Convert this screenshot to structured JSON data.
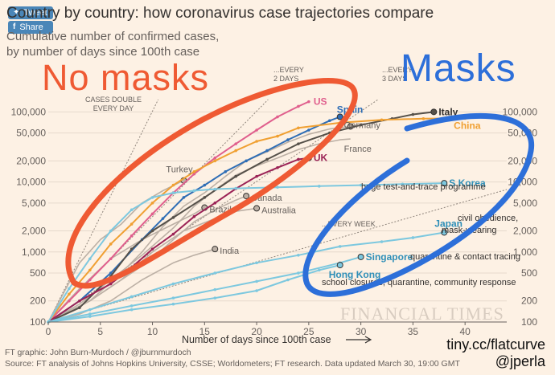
{
  "header": {
    "tweet_label": "Tweet",
    "share_label": "Share",
    "title": "Country by country: how coronavirus case trajectories compare",
    "subtitle_line1": "Cumulative number of confirmed cases,",
    "subtitle_line2": "by number of days since 100th case"
  },
  "annotations": {
    "no_masks": "No masks",
    "masks": "Masks",
    "link": "tiny.cc/flatcurve",
    "handle": "@jperla",
    "watermark": "FINANCIAL TIMES"
  },
  "footer": {
    "line1": "FT graphic: John Burn-Murdoch / @jburnmurdoch",
    "line2": "Source: FT analysis of Johns Hopkins University, CSSE; Worldometers; FT research. Data updated March 30, 19:00 GMT"
  },
  "colors": {
    "background": "#fdf1e4",
    "no_masks": "#ef5a33",
    "masks": "#2d6fd9",
    "grey": "#c9bdb2"
  },
  "chart_data": {
    "type": "line",
    "xlabel": "Number of days since 100th case",
    "xlim": [
      0,
      44
    ],
    "xticks": [
      0,
      5,
      10,
      15,
      20,
      25,
      30,
      35,
      40
    ],
    "yscale": "log",
    "ylim": [
      100,
      150000
    ],
    "yticks": [
      100,
      200,
      500,
      1000,
      2000,
      5000,
      10000,
      20000,
      50000,
      100000
    ],
    "ytick_labels": [
      "100",
      "200",
      "500",
      "1,000",
      "2,000",
      "5,000",
      "10,000",
      "20,000",
      "50,000",
      "100,000"
    ],
    "grid": true,
    "guides": [
      {
        "label": "CASES DOUBLE EVERY DAY",
        "lines": [
          "CASES DOUBLE",
          "EVERY DAY"
        ],
        "doubling_days": 1
      },
      {
        "label": "...EVERY 2 DAYS",
        "lines": [
          "...EVERY",
          "2 DAYS"
        ],
        "doubling_days": 2
      },
      {
        "label": "...EVERY 3 DAYS",
        "lines": [
          "...EVERY",
          "3 DAYS"
        ],
        "doubling_days": 3
      },
      {
        "label": "...EVERY WEEK",
        "lines": [
          "...EVERY WEEK"
        ],
        "doubling_days": 7
      }
    ],
    "series": [
      {
        "name": "US",
        "color": "#e05f8d",
        "label_color": "#e05f8d",
        "bold": true,
        "points": [
          [
            0,
            100
          ],
          [
            2,
            200
          ],
          [
            4,
            400
          ],
          [
            6,
            800
          ],
          [
            8,
            1700
          ],
          [
            10,
            3500
          ],
          [
            12,
            7000
          ],
          [
            14,
            13000
          ],
          [
            16,
            22000
          ],
          [
            18,
            35000
          ],
          [
            20,
            55000
          ],
          [
            22,
            85000
          ],
          [
            24,
            120000
          ],
          [
            25,
            140000
          ]
        ]
      },
      {
        "name": "Spain",
        "color": "#2e6db5",
        "label_color": "#2e6db5",
        "bold": true,
        "points": [
          [
            0,
            100
          ],
          [
            3,
            200
          ],
          [
            6,
            500
          ],
          [
            9,
            1500
          ],
          [
            11,
            3000
          ],
          [
            13,
            6000
          ],
          [
            15,
            9000
          ],
          [
            17,
            14000
          ],
          [
            19,
            20000
          ],
          [
            21,
            28000
          ],
          [
            23,
            40000
          ],
          [
            25,
            55000
          ],
          [
            27,
            75000
          ],
          [
            28,
            85000
          ]
        ]
      },
      {
        "name": "Italy",
        "color": "#555049",
        "label_color": "#33302e",
        "bold": true,
        "points": [
          [
            0,
            100
          ],
          [
            3,
            160
          ],
          [
            6,
            450
          ],
          [
            8,
            1100
          ],
          [
            10,
            2000
          ],
          [
            12,
            3100
          ],
          [
            15,
            6000
          ],
          [
            18,
            12000
          ],
          [
            21,
            21000
          ],
          [
            24,
            35000
          ],
          [
            27,
            50000
          ],
          [
            30,
            65000
          ],
          [
            33,
            80000
          ],
          [
            35,
            92000
          ],
          [
            37,
            100000
          ]
        ]
      },
      {
        "name": "China",
        "color": "#f0a032",
        "label_color": "#f0a032",
        "bold": true,
        "points": [
          [
            0,
            100
          ],
          [
            2,
            250
          ],
          [
            4,
            550
          ],
          [
            6,
            1300
          ],
          [
            8,
            2500
          ],
          [
            10,
            5000
          ],
          [
            12,
            9000
          ],
          [
            14,
            14000
          ],
          [
            16,
            20000
          ],
          [
            18,
            28000
          ],
          [
            20,
            38000
          ],
          [
            22,
            45000
          ],
          [
            24,
            59000
          ],
          [
            28,
            70000
          ],
          [
            32,
            77000
          ],
          [
            36,
            80000
          ],
          [
            40,
            81000
          ]
        ]
      },
      {
        "name": "Germany",
        "color": "#bcb0a5",
        "label_color": "#66605c",
        "bold": false,
        "points": [
          [
            0,
            100
          ],
          [
            4,
            200
          ],
          [
            7,
            500
          ],
          [
            9,
            1000
          ],
          [
            11,
            2300
          ],
          [
            13,
            4500
          ],
          [
            15,
            7000
          ],
          [
            17,
            12000
          ],
          [
            19,
            20000
          ],
          [
            21,
            27000
          ],
          [
            23,
            37000
          ],
          [
            25,
            48000
          ],
          [
            27,
            57000
          ],
          [
            29,
            62000
          ]
        ]
      },
      {
        "name": "France",
        "color": "#bcb0a5",
        "label_color": "#66605c",
        "bold": false,
        "points": [
          [
            0,
            100
          ],
          [
            3,
            180
          ],
          [
            6,
            400
          ],
          [
            9,
            900
          ],
          [
            12,
            2200
          ],
          [
            14,
            4500
          ],
          [
            16,
            7700
          ],
          [
            18,
            12500
          ],
          [
            20,
            17000
          ],
          [
            22,
            22000
          ],
          [
            24,
            29000
          ],
          [
            26,
            35000
          ],
          [
            28,
            40000
          ],
          [
            29,
            41000
          ]
        ]
      },
      {
        "name": "UK",
        "color": "#9b2356",
        "label_color": "#9b2356",
        "bold": true,
        "points": [
          [
            0,
            100
          ],
          [
            3,
            200
          ],
          [
            6,
            350
          ],
          [
            8,
            600
          ],
          [
            10,
            1100
          ],
          [
            12,
            1800
          ],
          [
            14,
            3200
          ],
          [
            16,
            5000
          ],
          [
            18,
            8000
          ],
          [
            20,
            12000
          ],
          [
            22,
            16000
          ],
          [
            24,
            21000
          ],
          [
            25,
            22000
          ]
        ]
      },
      {
        "name": "Turkey",
        "color": "#bcb0a5",
        "label_color": "#66605c",
        "bold": false,
        "points": [
          [
            0,
            100
          ],
          [
            3,
            700
          ],
          [
            5,
            1500
          ],
          [
            7,
            2500
          ],
          [
            9,
            5000
          ],
          [
            11,
            7500
          ],
          [
            13,
            10500
          ]
        ]
      },
      {
        "name": "Canada",
        "color": "#bcb0a5",
        "label_color": "#66605c",
        "bold": false,
        "points": [
          [
            0,
            100
          ],
          [
            4,
            200
          ],
          [
            8,
            500
          ],
          [
            10,
            800
          ],
          [
            12,
            1500
          ],
          [
            14,
            2700
          ],
          [
            16,
            4000
          ],
          [
            18,
            5500
          ],
          [
            19,
            6300
          ]
        ]
      },
      {
        "name": "Brazil",
        "color": "#bcb0a5",
        "label_color": "#66605c",
        "bold": false,
        "points": [
          [
            0,
            100
          ],
          [
            3,
            300
          ],
          [
            6,
            800
          ],
          [
            9,
            1500
          ],
          [
            12,
            2500
          ],
          [
            14,
            3500
          ],
          [
            15,
            4300
          ]
        ]
      },
      {
        "name": "Australia",
        "color": "#bcb0a5",
        "label_color": "#66605c",
        "bold": false,
        "points": [
          [
            0,
            100
          ],
          [
            4,
            200
          ],
          [
            7,
            400
          ],
          [
            10,
            1000
          ],
          [
            13,
            2000
          ],
          [
            16,
            3000
          ],
          [
            18,
            3800
          ],
          [
            20,
            4200
          ]
        ]
      },
      {
        "name": "India",
        "color": "#bcb0a5",
        "label_color": "#66605c",
        "bold": false,
        "points": [
          [
            0,
            100
          ],
          [
            3,
            130
          ],
          [
            6,
            200
          ],
          [
            9,
            400
          ],
          [
            12,
            700
          ],
          [
            14,
            900
          ],
          [
            16,
            1100
          ]
        ]
      },
      {
        "name": "S Korea",
        "color": "#7dc8df",
        "label_color": "#2f8fb8",
        "bold": true,
        "points": [
          [
            0,
            100
          ],
          [
            2,
            300
          ],
          [
            4,
            800
          ],
          [
            6,
            2000
          ],
          [
            8,
            4000
          ],
          [
            10,
            6000
          ],
          [
            12,
            7000
          ],
          [
            14,
            7500
          ],
          [
            16,
            7900
          ],
          [
            18,
            8100
          ],
          [
            22,
            8400
          ],
          [
            26,
            8700
          ],
          [
            30,
            9000
          ],
          [
            34,
            9300
          ],
          [
            38,
            9600
          ]
        ]
      },
      {
        "name": "Japan",
        "color": "#7dc8df",
        "label_color": "#2f8fb8",
        "bold": true,
        "points": [
          [
            0,
            100
          ],
          [
            4,
            150
          ],
          [
            8,
            230
          ],
          [
            12,
            350
          ],
          [
            16,
            500
          ],
          [
            20,
            700
          ],
          [
            24,
            900
          ],
          [
            28,
            1200
          ],
          [
            32,
            1400
          ],
          [
            35,
            1600
          ],
          [
            38,
            1900
          ]
        ]
      },
      {
        "name": "Singapore",
        "color": "#7dc8df",
        "label_color": "#2f8fb8",
        "bold": true,
        "points": [
          [
            0,
            100
          ],
          [
            4,
            130
          ],
          [
            8,
            170
          ],
          [
            12,
            220
          ],
          [
            16,
            290
          ],
          [
            20,
            380
          ],
          [
            24,
            500
          ],
          [
            28,
            700
          ],
          [
            30,
            850
          ]
        ]
      },
      {
        "name": "Hong Kong",
        "color": "#7dc8df",
        "label_color": "#2f8fb8",
        "bold": true,
        "points": [
          [
            0,
            100
          ],
          [
            4,
            120
          ],
          [
            8,
            150
          ],
          [
            12,
            180
          ],
          [
            16,
            220
          ],
          [
            20,
            280
          ],
          [
            23,
            400
          ],
          [
            26,
            550
          ],
          [
            28,
            650
          ]
        ]
      }
    ],
    "series_annotations": [
      {
        "series": "S Korea",
        "text": "huge test-and-trace programme"
      },
      {
        "series": "Japan",
        "text": "civil obedience, mask-wearing"
      },
      {
        "series": "Singapore",
        "text": "quarantine & contact tracing"
      },
      {
        "series": "Hong Kong",
        "text": "school closures, quarantine, community response"
      }
    ]
  }
}
